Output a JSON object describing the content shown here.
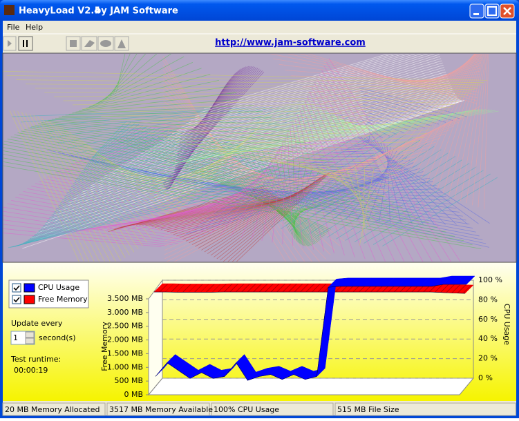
{
  "window": {
    "title": "HeavyLoad V2.4",
    "subtitle": "by JAM Software"
  },
  "menu": [
    "File",
    "Help"
  ],
  "toolbar": {
    "link": "http://www.jam-software.com"
  },
  "controls": {
    "update_label": "Update every",
    "update_value": "1",
    "update_unit": "second(s)",
    "runtime_label": "Test runtime:",
    "runtime_value": "00:00:19"
  },
  "status_bar": [
    "20 MB Memory Allocated",
    "3517 MB Memory Available",
    "100% CPU Usage",
    "515 MB File Size"
  ],
  "chart_data": {
    "type": "area",
    "ylabel": "Free Memory",
    "y2label": "CPU Usage",
    "series": [
      {
        "name": "CPU Usage",
        "color": "#0000ff",
        "axis": "y2",
        "values": [
          6,
          20,
          12,
          4,
          10,
          4,
          6,
          20,
          2,
          6,
          8,
          3,
          8,
          3,
          6,
          97,
          98,
          98,
          98,
          98,
          98,
          98,
          98,
          98,
          98,
          100,
          100,
          100
        ]
      },
      {
        "name": "Free Memory",
        "color": "#ff0000",
        "values": [
          3600,
          3600,
          3590,
          3590,
          3590,
          3590,
          3600,
          3600,
          3600,
          3600,
          3600,
          3600,
          3600,
          3600,
          3600,
          3600,
          3600,
          3600,
          3600,
          3600,
          3600,
          3600,
          3600,
          3600,
          3600,
          3580,
          3560,
          3550
        ]
      }
    ],
    "ylim": [
      0,
      3500
    ],
    "yticks": [
      {
        "value": 0,
        "label": "0 MB"
      },
      {
        "value": 500,
        "label": "500 MB"
      },
      {
        "value": 1000,
        "label": "1.000 MB"
      },
      {
        "value": 1500,
        "label": "1.500 MB"
      },
      {
        "value": 2000,
        "label": "2.000 MB"
      },
      {
        "value": 2500,
        "label": "2.500 MB"
      },
      {
        "value": 3000,
        "label": "3.000 MB"
      },
      {
        "value": 3500,
        "label": "3.500 MB"
      }
    ],
    "y2lim": [
      0,
      100
    ],
    "y2ticks": [
      {
        "value": 0,
        "label": "0 %"
      },
      {
        "value": 20,
        "label": "20 %"
      },
      {
        "value": 40,
        "label": "40 %"
      },
      {
        "value": 60,
        "label": "60 %"
      },
      {
        "value": 80,
        "label": "80 %"
      },
      {
        "value": 100,
        "label": "100 %"
      }
    ],
    "grid": true
  }
}
